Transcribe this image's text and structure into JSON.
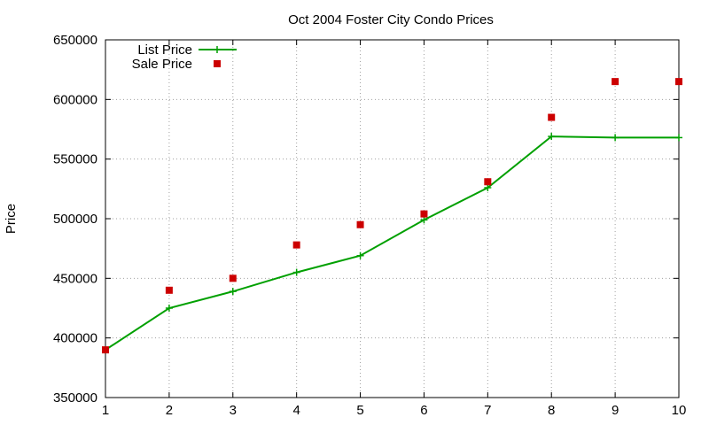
{
  "chart_data": {
    "type": "line",
    "title": "Oct 2004 Foster City Condo Prices",
    "xlabel": "",
    "ylabel": "Price",
    "xlim": [
      1,
      10
    ],
    "ylim": [
      350000,
      650000
    ],
    "x_ticks": [
      1,
      2,
      3,
      4,
      5,
      6,
      7,
      8,
      9,
      10
    ],
    "y_ticks": [
      350000,
      400000,
      450000,
      500000,
      550000,
      600000,
      650000
    ],
    "grid": true,
    "legend_position": "top-left",
    "series": [
      {
        "name": "List Price",
        "style": "line-with-plus-markers",
        "color": "#00a000",
        "x": [
          1,
          2,
          3,
          4,
          5,
          6,
          7,
          8,
          9,
          10
        ],
        "values": [
          390000,
          425000,
          439000,
          455000,
          469000,
          499000,
          526000,
          569000,
          568000,
          568000
        ]
      },
      {
        "name": "Sale Price",
        "style": "square-markers",
        "color": "#cc0000",
        "x": [
          1,
          2,
          3,
          4,
          5,
          6,
          7,
          8,
          9,
          10
        ],
        "values": [
          390000,
          440000,
          450000,
          478000,
          495000,
          504000,
          531000,
          585000,
          615000,
          615000
        ]
      }
    ]
  }
}
